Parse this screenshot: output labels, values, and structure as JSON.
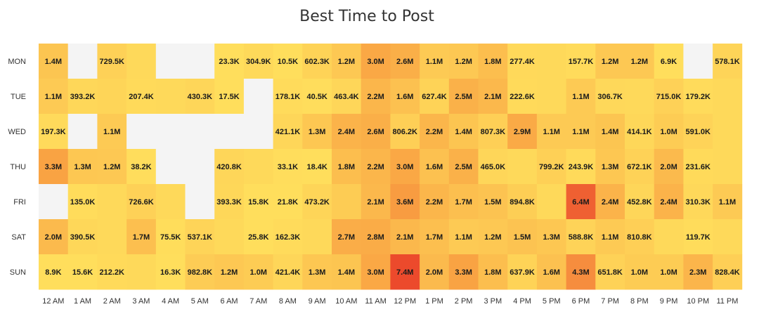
{
  "chart_data": {
    "type": "heatmap",
    "title": "Best Time to Post",
    "xlabel": "",
    "ylabel": "",
    "x": [
      "12 AM",
      "1 AM",
      "2 AM",
      "3 AM",
      "4 AM",
      "5 AM",
      "6 AM",
      "7 AM",
      "8 AM",
      "9 AM",
      "10 AM",
      "11 AM",
      "12 PM",
      "1 PM",
      "2 PM",
      "3 PM",
      "4 PM",
      "5 PM",
      "6 PM",
      "7 PM",
      "8 PM",
      "9 PM",
      "10 PM",
      "11 PM"
    ],
    "y": [
      "MON",
      "TUE",
      "WED",
      "THU",
      "FRI",
      "SAT",
      "SUN"
    ],
    "value_labels": [
      [
        "1.4M",
        null,
        "729.5K",
        "",
        null,
        null,
        "23.3K",
        "304.9K",
        "10.5K",
        "602.3K",
        "1.2M",
        "3.0M",
        "2.6M",
        "1.1M",
        "1.2M",
        "1.8M",
        "277.4K",
        "",
        "157.7K",
        "1.2M",
        "1.2M",
        "6.9K",
        null,
        "578.1K"
      ],
      [
        "1.1M",
        "393.2K",
        "",
        "207.4K",
        "",
        "430.3K",
        "17.5K",
        null,
        "178.1K",
        "40.5K",
        "463.4K",
        "2.2M",
        "1.6M",
        "627.4K",
        "2.5M",
        "2.1M",
        "222.6K",
        "",
        "1.1M",
        "306.7K",
        "",
        "715.0K",
        "179.2K",
        ""
      ],
      [
        "197.3K",
        null,
        "1.1M",
        null,
        null,
        null,
        null,
        null,
        "421.1K",
        "1.3M",
        "2.4M",
        "2.6M",
        "806.2K",
        "2.2M",
        "1.4M",
        "807.3K",
        "2.9M",
        "1.1M",
        "1.1M",
        "1.4M",
        "414.1K",
        "1.0M",
        "591.0K",
        ""
      ],
      [
        "3.3M",
        "1.3M",
        "1.2M",
        "38.2K",
        null,
        null,
        "420.8K",
        "",
        "33.1K",
        "18.4K",
        "1.8M",
        "2.2M",
        "3.0M",
        "1.6M",
        "2.5M",
        "465.0K",
        "",
        "799.2K",
        "243.9K",
        "1.3M",
        "672.1K",
        "2.0M",
        "231.6K",
        ""
      ],
      [
        null,
        "135.0K",
        "",
        "726.6K",
        "",
        null,
        "393.3K",
        "15.8K",
        "21.8K",
        "473.2K",
        "",
        "2.1M",
        "3.6M",
        "2.2M",
        "1.7M",
        "1.5M",
        "894.8K",
        "",
        "6.4M",
        "2.4M",
        "452.8K",
        "2.4M",
        "310.3K",
        "1.1M"
      ],
      [
        "2.0M",
        "390.5K",
        "",
        "1.7M",
        "75.5K",
        "537.1K",
        "",
        "25.8K",
        "162.3K",
        "",
        "2.7M",
        "2.8M",
        "2.1M",
        "1.7M",
        "1.1M",
        "1.2M",
        "1.5M",
        "1.3M",
        "588.8K",
        "1.1M",
        "810.8K",
        "",
        "119.7K",
        ""
      ],
      [
        "8.9K",
        "15.6K",
        "212.2K",
        "",
        "16.3K",
        "982.8K",
        "1.2M",
        "1.0M",
        "421.4K",
        "1.3M",
        "1.4M",
        "3.0M",
        "7.4M",
        "2.0M",
        "3.3M",
        "1.8M",
        "637.9K",
        "1.6M",
        "4.3M",
        "651.8K",
        "1.0M",
        "1.0M",
        "2.3M",
        "828.4K"
      ]
    ],
    "values_millions": [
      [
        1.4,
        null,
        0.7295,
        0.3,
        null,
        null,
        0.0233,
        0.3049,
        0.0105,
        0.6023,
        1.2,
        3.0,
        2.6,
        1.1,
        1.2,
        1.8,
        0.2774,
        0.3,
        0.1577,
        1.2,
        1.2,
        0.0069,
        null,
        0.5781
      ],
      [
        1.1,
        0.3932,
        0.5,
        0.2074,
        0.3,
        0.4303,
        0.0175,
        null,
        0.1781,
        0.0405,
        0.4634,
        2.2,
        1.6,
        0.6274,
        2.5,
        2.1,
        0.2226,
        0.3,
        1.1,
        0.3067,
        0.3,
        0.715,
        0.1792,
        0.3
      ],
      [
        0.1973,
        null,
        1.1,
        null,
        null,
        null,
        null,
        null,
        0.4211,
        1.3,
        2.4,
        2.6,
        0.8062,
        2.2,
        1.4,
        0.8073,
        2.9,
        1.1,
        1.1,
        1.4,
        0.4141,
        1.0,
        0.591,
        0.3
      ],
      [
        3.3,
        1.3,
        1.2,
        0.0382,
        null,
        null,
        0.4208,
        0.3,
        0.0331,
        0.0184,
        1.8,
        2.2,
        3.0,
        1.6,
        2.5,
        0.465,
        0.3,
        0.7992,
        0.2439,
        1.3,
        0.6721,
        2.0,
        0.2316,
        0.3
      ],
      [
        null,
        0.135,
        0.3,
        0.7266,
        0.3,
        null,
        0.3933,
        0.0158,
        0.0218,
        0.4732,
        1.0,
        2.1,
        3.6,
        2.2,
        1.7,
        1.5,
        0.8948,
        0.3,
        6.4,
        2.4,
        0.4528,
        2.4,
        0.3103,
        1.1
      ],
      [
        2.0,
        0.3905,
        0.3,
        1.7,
        0.0755,
        0.5371,
        0.3,
        0.0258,
        0.1623,
        0.3,
        2.7,
        2.8,
        2.1,
        1.7,
        1.1,
        1.2,
        1.5,
        1.3,
        0.5888,
        1.1,
        0.8108,
        0.3,
        0.1197,
        0.3
      ],
      [
        0.0089,
        0.0156,
        0.2122,
        0.3,
        0.0163,
        0.9828,
        1.2,
        1.0,
        0.4214,
        1.3,
        1.4,
        3.0,
        7.4,
        2.0,
        3.3,
        1.8,
        0.6379,
        1.6,
        4.3,
        0.6518,
        1.0,
        1.0,
        2.3,
        0.8284
      ]
    ],
    "color_scale": {
      "low": "#ffde5c",
      "mid": "#f9a243",
      "high": "#ec4a2c",
      "missing": "#f4f4f4",
      "vmax": 7.4
    },
    "legend": "none",
    "grid": false
  }
}
